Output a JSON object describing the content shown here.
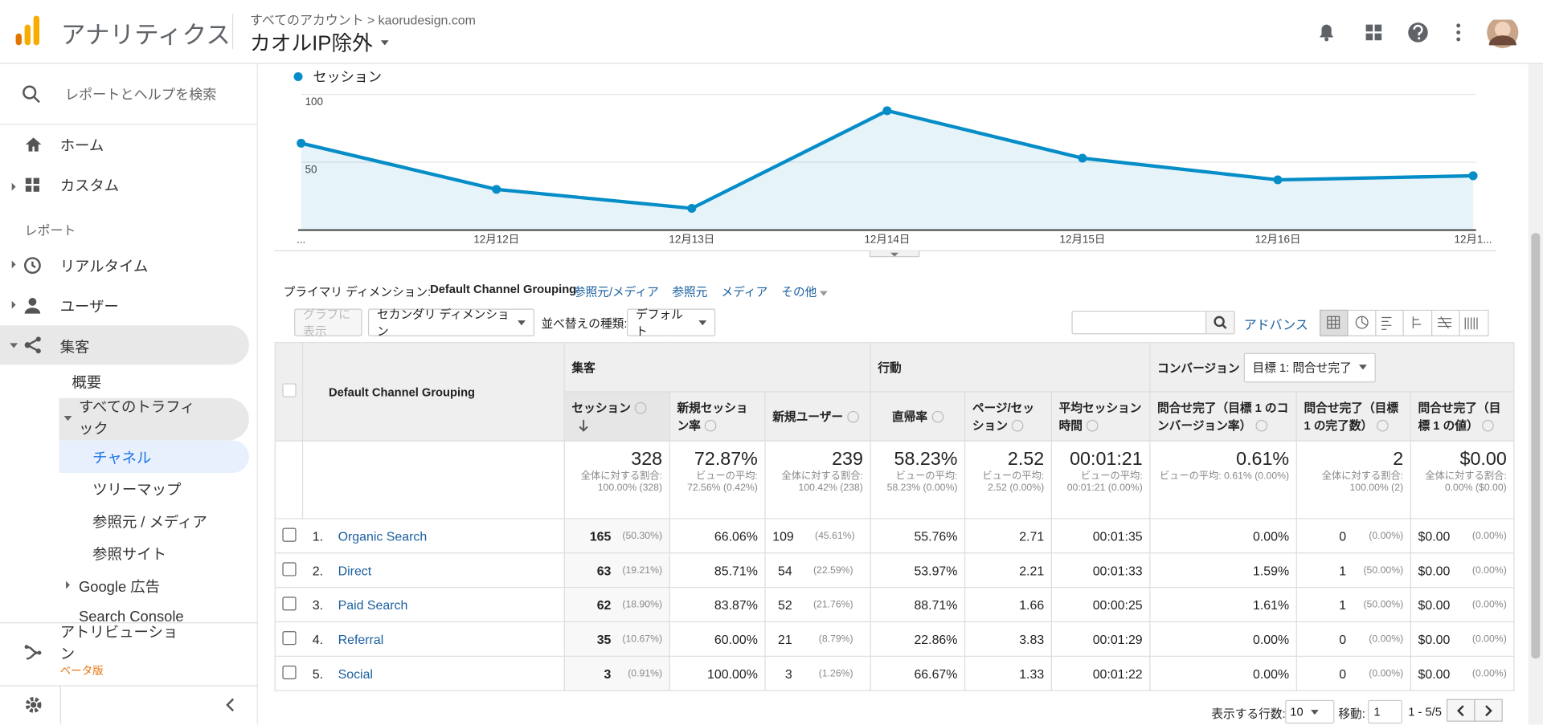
{
  "header": {
    "product": "アナリティクス",
    "breadcrumb": "すべてのアカウント > kaorudesign.com",
    "view": "カオルIP除外"
  },
  "sidebar": {
    "search": "レポートとヘルプを検索",
    "home": "ホーム",
    "custom": "カスタム",
    "reports_heading": "レポート",
    "realtime": "リアルタイム",
    "audience": "ユーザー",
    "acquisition": "集客",
    "overview": "概要",
    "all_traffic": "すべてのトラフィック",
    "channels": "チャネル",
    "treemaps": "ツリーマップ",
    "source_medium": "参照元 / メディア",
    "referrals": "参照サイト",
    "google_ads": "Google 広告",
    "search_console": "Search Console",
    "attribution": "アトリビューション",
    "beta": "ベータ版"
  },
  "chart_data": {
    "type": "line",
    "x": [
      "...",
      "12月12日",
      "12月13日",
      "12月14日",
      "12月15日",
      "12月16日",
      "12月1..."
    ],
    "series": [
      {
        "name": "セッション",
        "color": "#058dc7",
        "values": [
          64,
          30,
          16,
          88,
          53,
          37,
          40
        ]
      }
    ],
    "ylim": [
      0,
      105
    ],
    "yticks": [
      50,
      100
    ],
    "grid": true
  },
  "report": {
    "primary_dimension_label": "プライマリ ディメンション:",
    "primary_dimension": "Default Channel Grouping",
    "dimension_links": [
      "参照元/メディア",
      "参照元",
      "メディア",
      "その他"
    ],
    "plot_rows": "グラフに表示",
    "secondary_dimension": "セカンダリ ディメンション",
    "sort_label": "並べ替えの種類:",
    "sort_value": "デフォルト",
    "advanced": "アドバンス"
  },
  "table": {
    "dimension_header": "Default Channel Grouping",
    "groups": [
      "集客",
      "行動",
      "コンバージョン"
    ],
    "goal_select": "目標 1: 問合せ完了",
    "columns": [
      "セッション",
      "新規セッション率",
      "新規ユーザー",
      "直帰率",
      "ページ/セッション",
      "平均セッション時間",
      "問合せ完了（目標 1 のコンバージョン率）",
      "問合せ完了（目標 1 の完了数）",
      "問合せ完了（目標 1 の値）"
    ],
    "totals": [
      [
        "328",
        "全体に対する割合: 100.00% (328)"
      ],
      [
        "72.87%",
        "ビューの平均: 72.56% (0.42%)"
      ],
      [
        "239",
        "全体に対する割合: 100.42% (238)"
      ],
      [
        "58.23%",
        "ビューの平均: 58.23% (0.00%)"
      ],
      [
        "2.52",
        "ビューの平均: 2.52 (0.00%)"
      ],
      [
        "00:01:21",
        "ビューの平均: 00:01:21 (0.00%)"
      ],
      [
        "0.61%",
        "ビューの平均: 0.61% (0.00%)"
      ],
      [
        "2",
        "全体に対する割合: 100.00% (2)"
      ],
      [
        "$0.00",
        "全体に対する割合: 0.00% ($0.00)"
      ]
    ],
    "rows": [
      {
        "index": "1.",
        "name": "Organic Search",
        "cells": [
          [
            "165",
            "(50.30%)"
          ],
          [
            "66.06%"
          ],
          [
            "109",
            "(45.61%)"
          ],
          [
            "55.76%"
          ],
          [
            "2.71"
          ],
          [
            "00:01:35"
          ],
          [
            "0.00%"
          ],
          [
            "0",
            "(0.00%)"
          ],
          [
            "$0.00",
            "(0.00%)"
          ]
        ]
      },
      {
        "index": "2.",
        "name": "Direct",
        "cells": [
          [
            "63",
            "(19.21%)"
          ],
          [
            "85.71%"
          ],
          [
            "54",
            "(22.59%)"
          ],
          [
            "53.97%"
          ],
          [
            "2.21"
          ],
          [
            "00:01:33"
          ],
          [
            "1.59%"
          ],
          [
            "1",
            "(50.00%)"
          ],
          [
            "$0.00",
            "(0.00%)"
          ]
        ]
      },
      {
        "index": "3.",
        "name": "Paid Search",
        "cells": [
          [
            "62",
            "(18.90%)"
          ],
          [
            "83.87%"
          ],
          [
            "52",
            "(21.76%)"
          ],
          [
            "88.71%"
          ],
          [
            "1.66"
          ],
          [
            "00:00:25"
          ],
          [
            "1.61%"
          ],
          [
            "1",
            "(50.00%)"
          ],
          [
            "$0.00",
            "(0.00%)"
          ]
        ]
      },
      {
        "index": "4.",
        "name": "Referral",
        "cells": [
          [
            "35",
            "(10.67%)"
          ],
          [
            "60.00%"
          ],
          [
            "21",
            "(8.79%)"
          ],
          [
            "22.86%"
          ],
          [
            "3.83"
          ],
          [
            "00:01:29"
          ],
          [
            "0.00%"
          ],
          [
            "0",
            "(0.00%)"
          ],
          [
            "$0.00",
            "(0.00%)"
          ]
        ]
      },
      {
        "index": "5.",
        "name": "Social",
        "cells": [
          [
            "3",
            "(0.91%)"
          ],
          [
            "100.00%"
          ],
          [
            "3",
            "(1.26%)"
          ],
          [
            "66.67%"
          ],
          [
            "1.33"
          ],
          [
            "00:01:22"
          ],
          [
            "0.00%"
          ],
          [
            "0",
            "(0.00%)"
          ],
          [
            "$0.00",
            "(0.00%)"
          ]
        ]
      }
    ]
  },
  "pagination": {
    "rows_label": "表示する行数:",
    "rows_value": "10",
    "goto_label": "移動:",
    "goto_value": "1",
    "range": "1 - 5/5"
  }
}
